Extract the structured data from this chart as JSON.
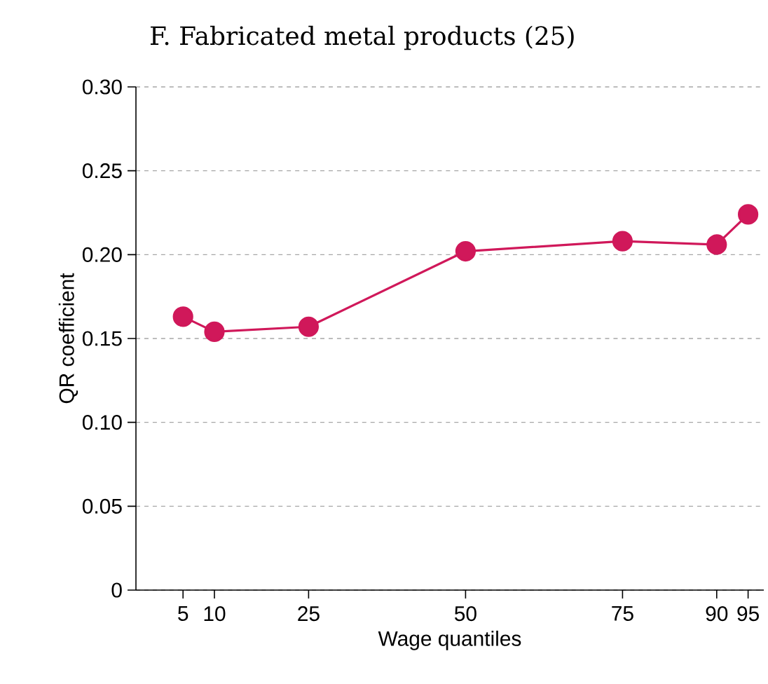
{
  "chart_data": {
    "type": "line",
    "title": "F. Fabricated metal products (25)",
    "xlabel": "Wage quantiles",
    "ylabel": "QR coefficient",
    "x": [
      5,
      10,
      25,
      50,
      75,
      90,
      95
    ],
    "series": [
      {
        "color": "#d0185a",
        "values": [
          0.163,
          0.154,
          0.157,
          0.202,
          0.208,
          0.206,
          0.224
        ]
      }
    ],
    "xlim": [
      -2.5,
      97.5
    ],
    "xticks": [
      5,
      10,
      25,
      50,
      75,
      90,
      95
    ],
    "ylim": [
      0,
      0.3
    ],
    "yticks": [
      0,
      0.05,
      {
        "value": 0.1,
        "label": "0.10"
      },
      0.15,
      {
        "value": 0.2,
        "label": "0.20"
      },
      0.25,
      {
        "value": 0.3,
        "label": "0.30"
      }
    ],
    "grid": "y",
    "marker": "circle",
    "line_style": "solid"
  }
}
